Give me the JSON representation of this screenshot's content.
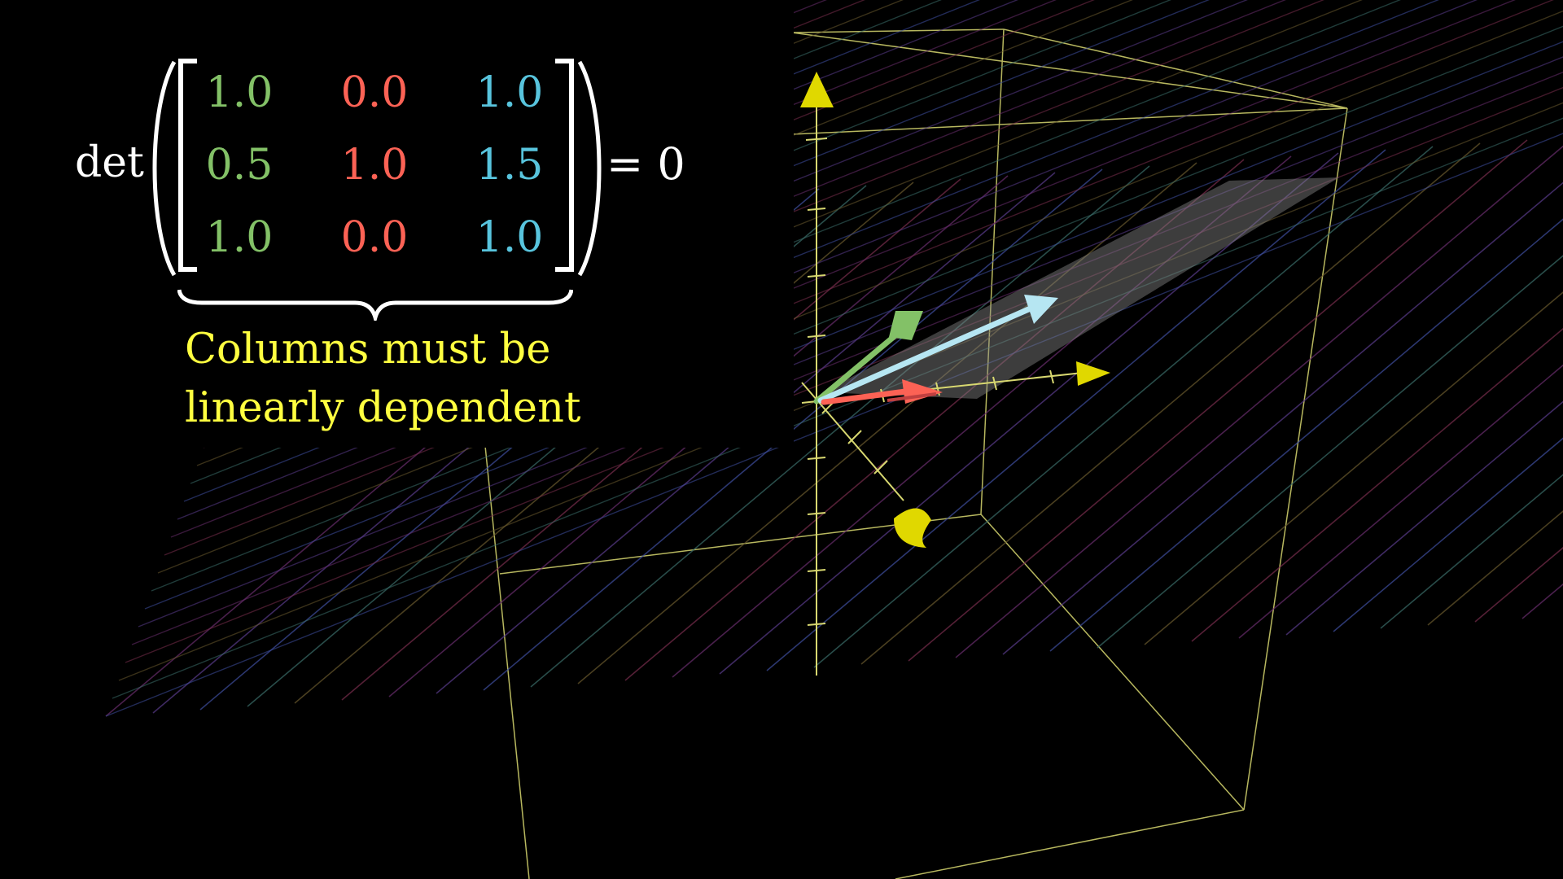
{
  "formula": {
    "det_label": "det",
    "equals_label": "= 0",
    "matrix": [
      [
        "1.0",
        "0.0",
        "1.0"
      ],
      [
        "0.5",
        "1.0",
        "1.5"
      ],
      [
        "1.0",
        "0.0",
        "1.0"
      ]
    ],
    "column_colors": [
      "#83c167",
      "#fc6255",
      "#58c4dd"
    ]
  },
  "caption": {
    "line1": "Columns must be",
    "line2": "linearly dependent",
    "color": "#ffff40"
  },
  "scene": {
    "axis_color": "#ffff00",
    "vectors": [
      {
        "name": "i-hat-image",
        "color": "#fc6255"
      },
      {
        "name": "j-hat-image",
        "color": "#83c167"
      },
      {
        "name": "k-hat-image",
        "color": "#b6e6f2"
      }
    ]
  }
}
